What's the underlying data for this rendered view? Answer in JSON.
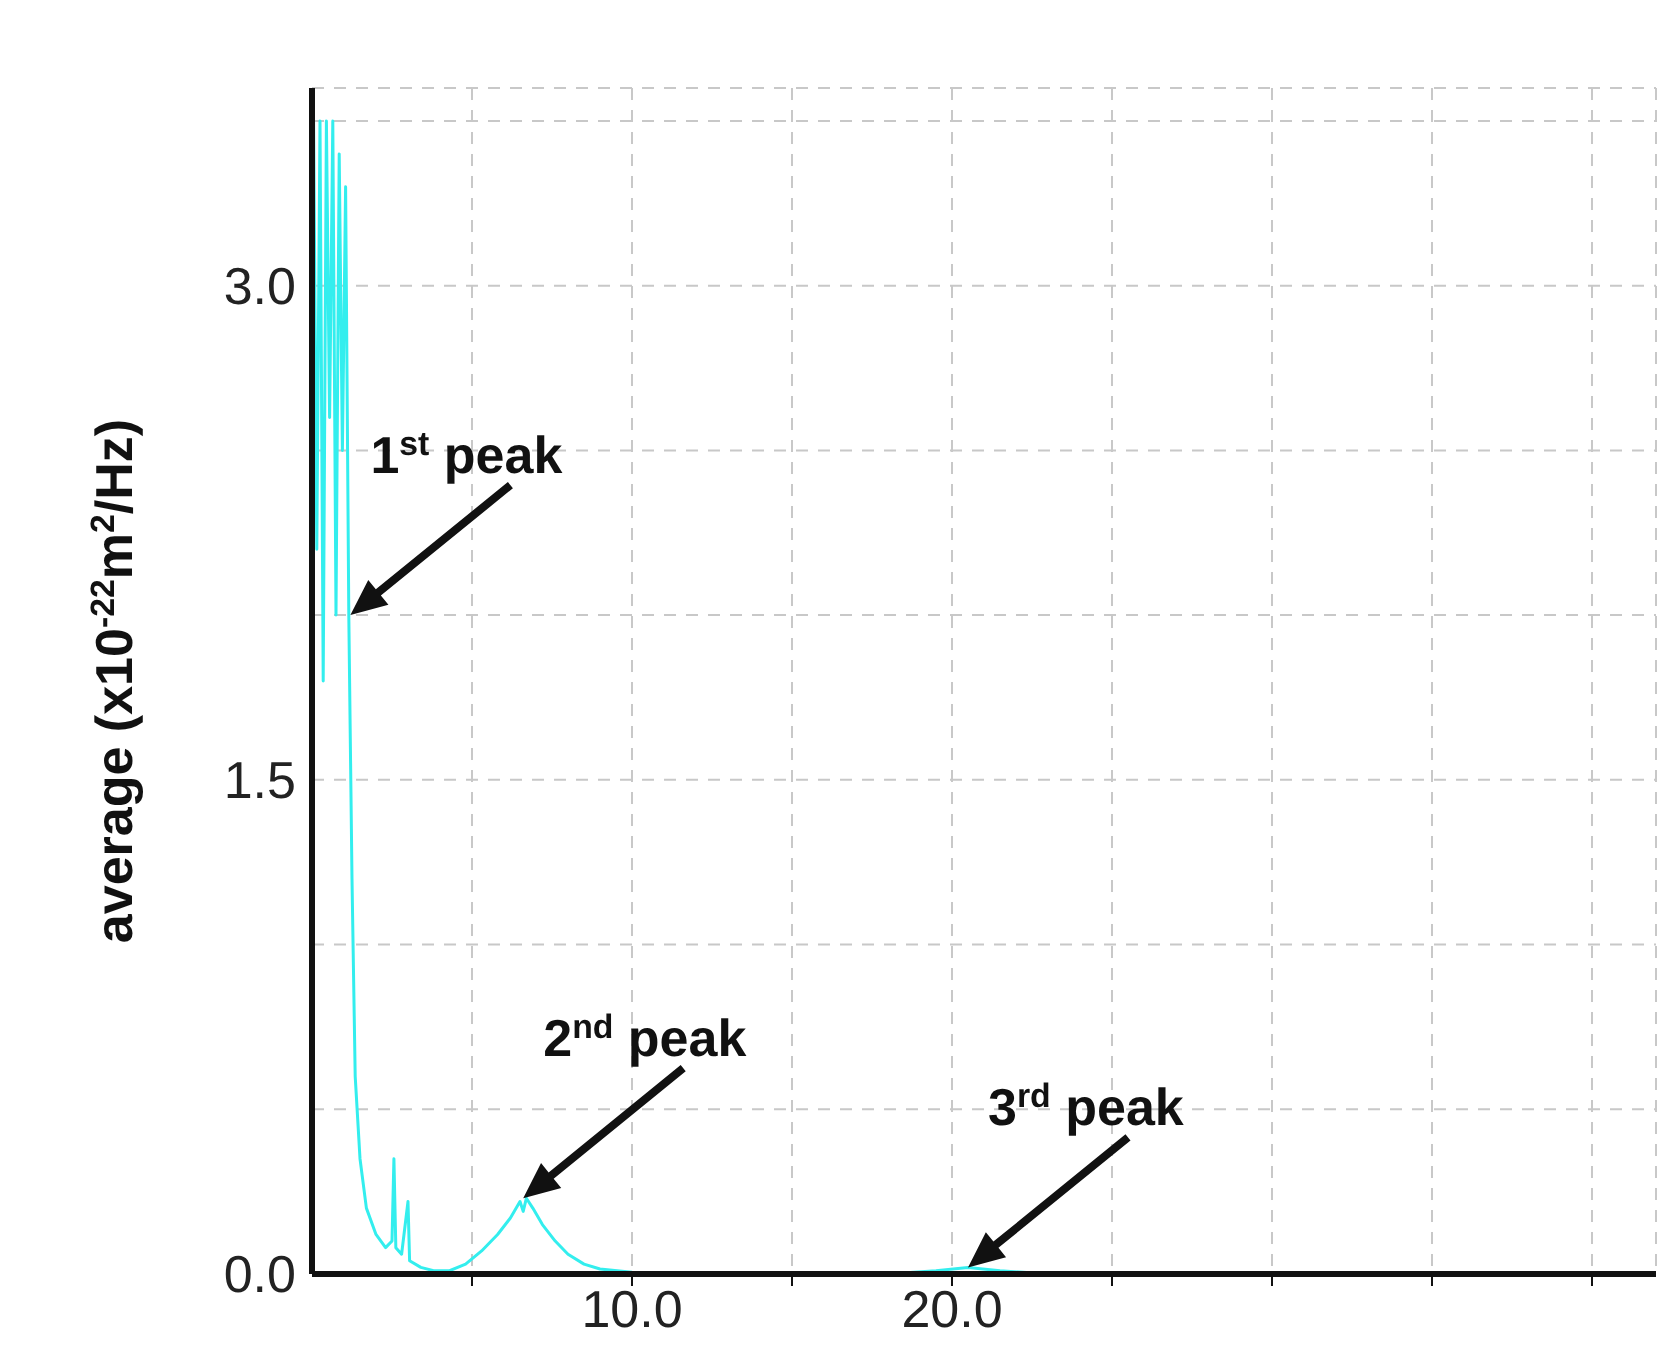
{
  "chart_data": {
    "type": "line",
    "ylabel": "average (x10$^{-22}$m$^{2}$/Hz)",
    "annotations": [
      {
        "text": "1$^{st}$ peak",
        "x": 1.2,
        "y": 2.0
      },
      {
        "text": "2$^{nd}$ peak",
        "x": 6.6,
        "y": 0.23
      },
      {
        "text": "3$^{rd}$ peak",
        "x": 20.5,
        "y": 0.02
      }
    ],
    "x": [
      0,
      0.05,
      0.15,
      0.25,
      0.35,
      0.45,
      0.55,
      0.65,
      0.75,
      0.85,
      0.95,
      1.05,
      1.15,
      1.25,
      1.35,
      1.5,
      1.7,
      2.0,
      2.3,
      2.5,
      2.56,
      2.62,
      2.8,
      3.0,
      3.05,
      3.4,
      3.8,
      4.3,
      4.8,
      5.3,
      5.8,
      6.2,
      6.5,
      6.6,
      6.7,
      6.9,
      7.2,
      7.6,
      8.0,
      8.5,
      9.0,
      10.0,
      12.0,
      18.0,
      19.5,
      20.5,
      21.5,
      23.0,
      40.0
    ],
    "series": [
      {
        "color": "#33eeee",
        "values": [
          0,
          3.5,
          2.2,
          3.5,
          1.8,
          3.5,
          2.6,
          3.5,
          2.0,
          3.4,
          2.5,
          3.3,
          2.0,
          1.2,
          0.6,
          0.35,
          0.2,
          0.12,
          0.08,
          0.1,
          0.35,
          0.08,
          0.06,
          0.22,
          0.04,
          0.02,
          0.01,
          0.01,
          0.03,
          0.07,
          0.12,
          0.17,
          0.22,
          0.19,
          0.23,
          0.2,
          0.15,
          0.1,
          0.06,
          0.03,
          0.015,
          0.005,
          0,
          0,
          0.01,
          0.02,
          0.01,
          0,
          0
        ]
      }
    ],
    "xlim": [
      0,
      42
    ],
    "xticks": [
      {
        "value": 5,
        "label": null
      },
      {
        "value": 10,
        "label": "10.0"
      },
      {
        "value": 15,
        "label": null
      },
      {
        "value": 20,
        "label": "20.0"
      },
      {
        "value": 25,
        "label": null
      },
      {
        "value": 30,
        "label": null
      },
      {
        "value": 35,
        "label": null
      },
      {
        "value": 40,
        "label": null
      }
    ],
    "ylim": [
      0,
      3.6
    ],
    "yticks": [
      {
        "value": 0,
        "label": "0.0"
      },
      {
        "value": 0.5,
        "label": null
      },
      {
        "value": 1,
        "label": null
      },
      {
        "value": 1.5,
        "label": "1.5"
      },
      {
        "value": 2,
        "label": null
      },
      {
        "value": 2.5,
        "label": null
      },
      {
        "value": 3,
        "label": "3.0"
      },
      {
        "value": 3.5,
        "label": null
      }
    ],
    "grid": true,
    "marker": "none",
    "line_style": "solid",
    "legend": false
  }
}
